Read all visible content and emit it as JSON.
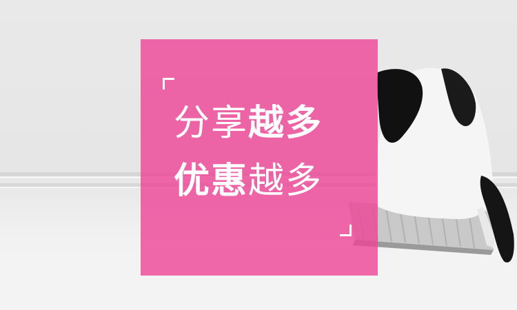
{
  "headline": {
    "line1": {
      "light": "分享",
      "bold": "越多"
    },
    "line2": {
      "bold": "优惠",
      "light": "越多"
    }
  },
  "colors": {
    "overlay": "#EE4296",
    "text": "#FFFFFF",
    "background": "#E8E8E8"
  }
}
